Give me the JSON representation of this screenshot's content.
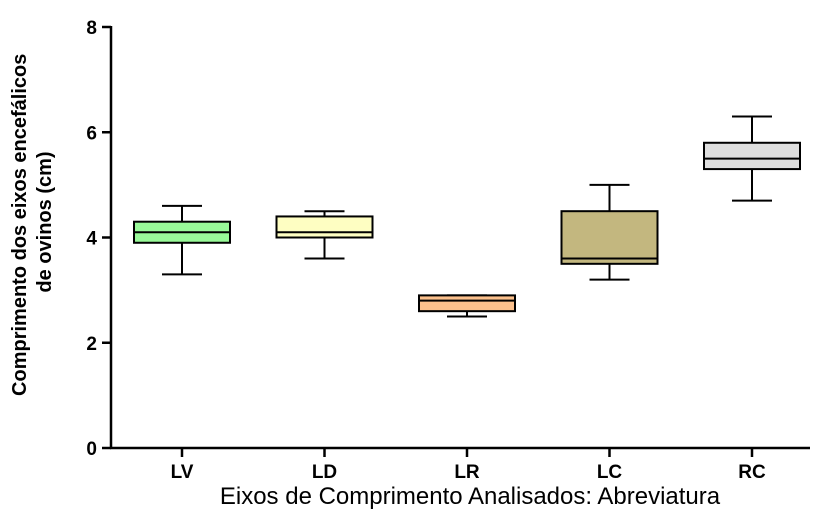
{
  "chart_data": {
    "type": "box",
    "xlabel": "Eixos de Comprimento Analisados: Abreviatura",
    "ylabel": [
      "Comprimento dos eixos encefálicos",
      "de ovinos (cm)"
    ],
    "ylim": [
      0,
      8
    ],
    "yticks": [
      0,
      2,
      4,
      6,
      8
    ],
    "grid": false,
    "categories": [
      "LV",
      "LD",
      "LR",
      "LC",
      "RC"
    ],
    "boxes": [
      {
        "label": "LV",
        "min": 3.3,
        "q1": 3.9,
        "median": 4.1,
        "q3": 4.3,
        "max": 4.6,
        "color": "#99F999"
      },
      {
        "label": "LD",
        "min": 3.6,
        "q1": 4.0,
        "median": 4.1,
        "q3": 4.4,
        "max": 4.5,
        "color": "#FEFEC2"
      },
      {
        "label": "LR",
        "min": 2.5,
        "q1": 2.6,
        "median": 2.8,
        "q3": 2.9,
        "max": 2.9,
        "color": "#FBC08C"
      },
      {
        "label": "LC",
        "min": 3.2,
        "q1": 3.5,
        "median": 3.6,
        "q3": 4.5,
        "max": 5.0,
        "color": "#C3B77F"
      },
      {
        "label": "RC",
        "min": 4.7,
        "q1": 5.3,
        "median": 5.5,
        "q3": 5.8,
        "max": 6.3,
        "color": "#DEDEDE"
      }
    ]
  }
}
